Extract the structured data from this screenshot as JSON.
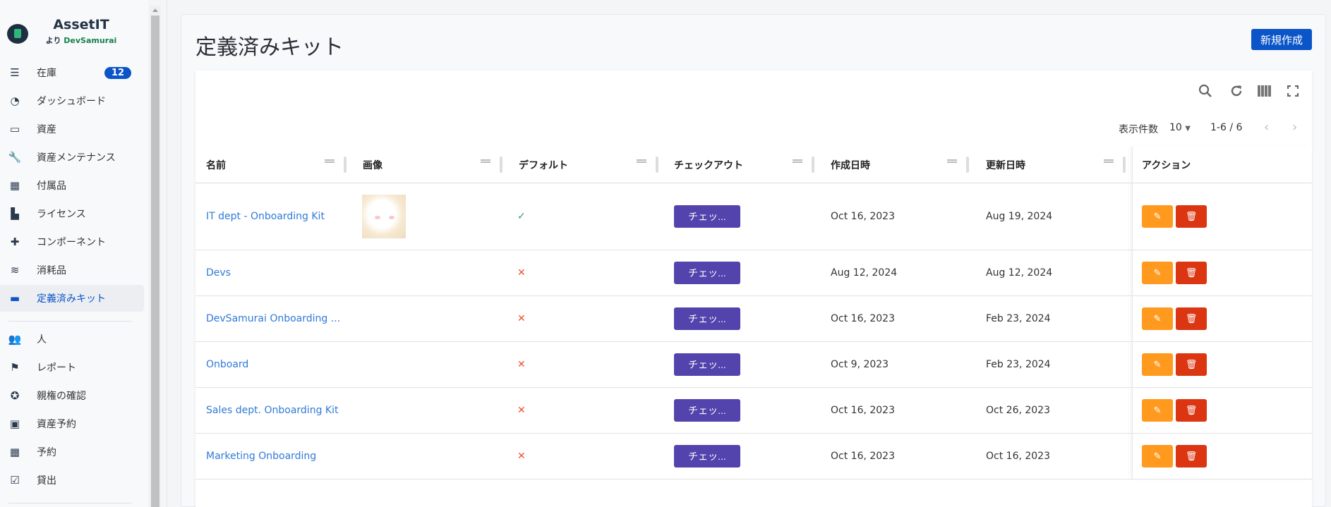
{
  "brand": {
    "name": "AssetIT",
    "by": "より",
    "company": "DevSamurai"
  },
  "sidebar": {
    "items": [
      {
        "label": "在庫",
        "icon": "sliders-icon",
        "badge": "12"
      },
      {
        "label": "ダッシュボード",
        "icon": "gauge-icon"
      },
      {
        "label": "資産",
        "icon": "laptop-icon"
      },
      {
        "label": "資産メンテナンス",
        "icon": "wrench-icon"
      },
      {
        "label": "付属品",
        "icon": "keyboard-icon"
      },
      {
        "label": "ライセンス",
        "icon": "scroll-icon"
      },
      {
        "label": "コンポーネント",
        "icon": "puzzle-icon"
      },
      {
        "label": "消耗品",
        "icon": "layers-icon"
      },
      {
        "label": "定義済みキット",
        "icon": "toolbox-icon",
        "active": true
      },
      {
        "label": "人",
        "icon": "users-icon"
      },
      {
        "label": "レポート",
        "icon": "flag-icon"
      },
      {
        "label": "親権の確認",
        "icon": "badge-check-icon"
      },
      {
        "label": "資産予約",
        "icon": "ticket-icon"
      },
      {
        "label": "予約",
        "icon": "calendar-icon"
      },
      {
        "label": "貸出",
        "icon": "calendar-check-icon"
      }
    ]
  },
  "page": {
    "title": "定義済みキット",
    "new_button": "新規作成"
  },
  "toolbar": {
    "icons": [
      "search-icon",
      "refresh-icon",
      "columns-icon",
      "fullscreen-icon"
    ]
  },
  "pagination": {
    "per_page_label": "表示件数",
    "per_page": "10",
    "range": "1-6 / 6"
  },
  "table": {
    "columns": [
      "名前",
      "画像",
      "デフォルト",
      "チェックアウト",
      "作成日時",
      "更新日時",
      "アクション"
    ],
    "rows": [
      {
        "name": "IT dept - Onboarding Kit",
        "has_image": true,
        "default": true,
        "checkout": "チェッ...",
        "created": "Oct 16, 2023",
        "updated": "Aug 19, 2024"
      },
      {
        "name": "Devs",
        "has_image": false,
        "default": false,
        "checkout": "チェッ...",
        "created": "Aug 12, 2024",
        "updated": "Aug 12, 2024"
      },
      {
        "name": "DevSamurai Onboarding ...",
        "has_image": false,
        "default": false,
        "checkout": "チェッ...",
        "created": "Oct 16, 2023",
        "updated": "Feb 23, 2024"
      },
      {
        "name": "Onboard",
        "has_image": false,
        "default": false,
        "checkout": "チェッ...",
        "created": "Oct 9, 2023",
        "updated": "Feb 23, 2024"
      },
      {
        "name": "Sales dept. Onboarding Kit",
        "has_image": false,
        "default": false,
        "checkout": "チェッ...",
        "created": "Oct 16, 2023",
        "updated": "Oct 26, 2023"
      },
      {
        "name": "Marketing Onboarding",
        "has_image": false,
        "default": false,
        "checkout": "チェッ...",
        "created": "Oct 16, 2023",
        "updated": "Oct 16, 2023"
      }
    ]
  },
  "colors": {
    "primary": "#0b55c8",
    "checkout": "#5344ad",
    "edit": "#ff9a1f",
    "delete": "#dc3511",
    "link": "#2f7ad8",
    "check": "#2e9e6b",
    "cross": "#f0502a"
  }
}
